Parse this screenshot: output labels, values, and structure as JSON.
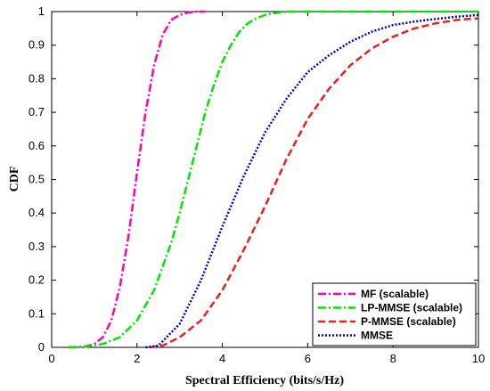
{
  "chart_data": {
    "type": "line",
    "title": "",
    "xlabel": "Spectral Efficiency (bits/s/Hz)",
    "ylabel": "CDF",
    "xlim": [
      0,
      10
    ],
    "ylim": [
      0,
      1
    ],
    "xticks": [
      0,
      2,
      4,
      6,
      8,
      10
    ],
    "yticks": [
      0,
      0.1,
      0.2,
      0.3,
      0.4,
      0.5,
      0.6,
      0.7,
      0.8,
      0.9,
      1
    ],
    "grid": false,
    "legend_position": "bottom-right",
    "series": [
      {
        "name": "MF (scalable)",
        "color": "#ff00b4",
        "dash": "dashdot",
        "x": [
          0.4,
          0.8,
          1.0,
          1.2,
          1.4,
          1.6,
          1.8,
          2.0,
          2.2,
          2.4,
          2.6,
          2.8,
          3.0,
          3.2,
          3.4,
          3.6
        ],
        "y": [
          0,
          0.003,
          0.01,
          0.03,
          0.08,
          0.18,
          0.33,
          0.52,
          0.7,
          0.84,
          0.93,
          0.975,
          0.99,
          0.997,
          1.0,
          1.0
        ]
      },
      {
        "name": "LP-MMSE (scalable)",
        "color": "#00e600",
        "dash": "dashdot",
        "x": [
          0.4,
          0.8,
          1.2,
          1.6,
          2.0,
          2.4,
          2.8,
          3.0,
          3.2,
          3.4,
          3.6,
          3.8,
          4.0,
          4.2,
          4.4,
          4.6,
          4.8,
          5.0,
          5.2,
          5.6,
          6.0,
          7.0,
          8.0,
          10.0
        ],
        "y": [
          0,
          0.002,
          0.01,
          0.03,
          0.08,
          0.17,
          0.31,
          0.4,
          0.5,
          0.6,
          0.7,
          0.78,
          0.85,
          0.9,
          0.94,
          0.965,
          0.98,
          0.99,
          0.995,
          1.0,
          1.0,
          1.0,
          1.0,
          1.0
        ]
      },
      {
        "name": "P-MMSE (scalable)",
        "color": "#ee1d1d",
        "dash": "dash",
        "x": [
          2.3,
          2.6,
          3.0,
          3.5,
          4.0,
          4.5,
          5.0,
          5.5,
          6.0,
          6.5,
          7.0,
          7.5,
          8.0,
          8.5,
          9.0,
          9.5,
          10.0
        ],
        "y": [
          0,
          0.005,
          0.03,
          0.08,
          0.17,
          0.29,
          0.42,
          0.56,
          0.68,
          0.77,
          0.84,
          0.89,
          0.925,
          0.95,
          0.965,
          0.975,
          0.98
        ]
      },
      {
        "name": "MMSE",
        "color": "#0000d2",
        "dash": "dot",
        "x": [
          2.2,
          2.5,
          3.0,
          3.5,
          4.0,
          4.5,
          5.0,
          5.5,
          6.0,
          6.5,
          7.0,
          7.5,
          8.0,
          8.5,
          9.0,
          9.5,
          10.0
        ],
        "y": [
          0,
          0.005,
          0.07,
          0.2,
          0.36,
          0.51,
          0.64,
          0.74,
          0.82,
          0.87,
          0.91,
          0.94,
          0.96,
          0.97,
          0.978,
          0.985,
          0.99
        ]
      }
    ]
  }
}
